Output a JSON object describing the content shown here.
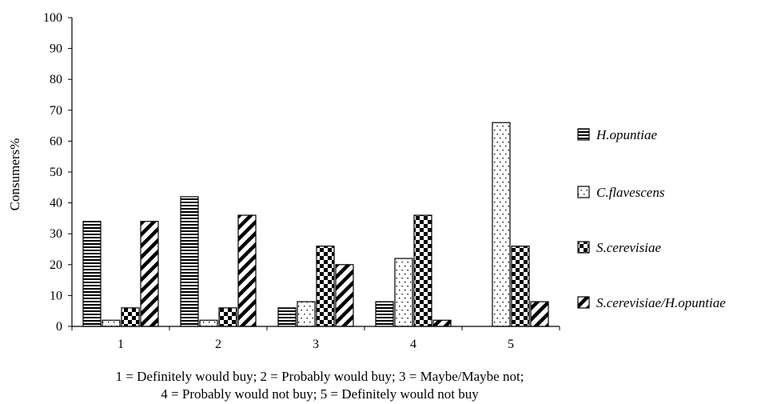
{
  "chart_data": {
    "type": "bar",
    "categories": [
      "1",
      "2",
      "3",
      "4",
      "5"
    ],
    "series": [
      {
        "name": "H.opuntiae",
        "values": [
          34,
          42,
          6,
          8,
          0
        ],
        "pattern": "horizontal-lines"
      },
      {
        "name": "C.flavescens",
        "values": [
          2,
          2,
          8,
          22,
          66
        ],
        "pattern": "dots"
      },
      {
        "name": "S.cerevisiae",
        "values": [
          6,
          6,
          26,
          36,
          26
        ],
        "pattern": "checker"
      },
      {
        "name": "S.cerevisiae/H.opuntiae",
        "values": [
          34,
          36,
          20,
          2,
          8
        ],
        "pattern": "diagonal-stripes"
      }
    ],
    "ylabel": "Consumers%",
    "xlabel": "",
    "ylim": [
      0,
      100
    ],
    "yticks": [
      "0",
      "10",
      "20",
      "30",
      "40",
      "50",
      "60",
      "70",
      "80",
      "90",
      "100"
    ],
    "grid": false,
    "legend_position": "right",
    "colors": {
      "bar_stroke": "#000000",
      "fill": "#ffffff",
      "pattern": "#000000"
    }
  },
  "caption": {
    "line1": "1 = Definitely would buy; 2 = Probably would buy; 3 = Maybe/Maybe not;",
    "line2": "4 = Probably would not buy; 5 = Definitely would not buy"
  }
}
